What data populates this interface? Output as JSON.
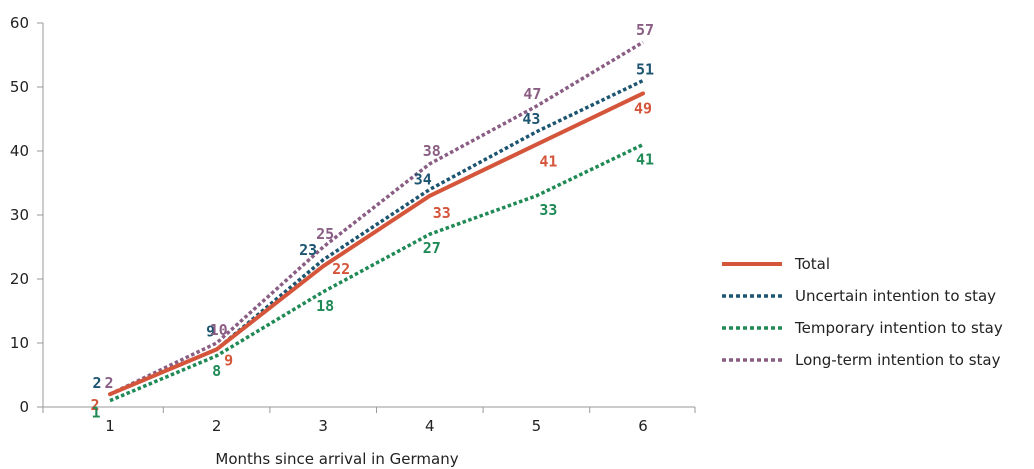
{
  "chart_data": {
    "type": "line",
    "x": [
      1,
      2,
      3,
      4,
      5,
      6
    ],
    "xlabel": "Months since arrival in Germany",
    "ylabel": "",
    "ylim": [
      0,
      60
    ],
    "yticks": [
      0,
      10,
      20,
      30,
      40,
      50,
      60
    ],
    "grid": false,
    "legend_position": "right",
    "series": [
      {
        "name": "Total",
        "values": [
          2,
          9,
          22,
          33,
          41,
          49
        ],
        "color": "#d4553a",
        "style": "solid"
      },
      {
        "name": "Uncertain intention to stay",
        "values": [
          2,
          9,
          23,
          34,
          43,
          51
        ],
        "color": "#1d5571",
        "style": "dotted"
      },
      {
        "name": "Temporary intention to stay",
        "values": [
          1,
          8,
          18,
          27,
          33,
          41
        ],
        "color": "#1f8a55",
        "style": "dotted"
      },
      {
        "name": "Long-term intention to stay",
        "values": [
          2,
          10,
          25,
          38,
          47,
          57
        ],
        "color": "#8a5e84",
        "style": "dotted"
      }
    ]
  }
}
